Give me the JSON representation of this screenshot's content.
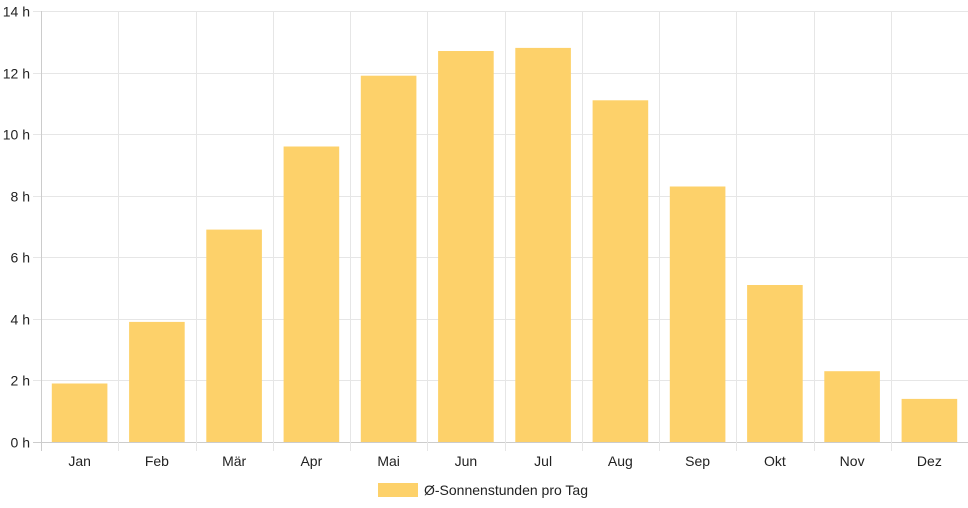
{
  "chart_data": {
    "type": "bar",
    "categories": [
      "Jan",
      "Feb",
      "Mär",
      "Apr",
      "Mai",
      "Jun",
      "Jul",
      "Aug",
      "Sep",
      "Okt",
      "Nov",
      "Dez"
    ],
    "series": [
      {
        "name": "Ø-Sonnenstunden pro Tag",
        "values": [
          1.9,
          3.9,
          6.9,
          9.6,
          11.9,
          12.7,
          12.8,
          11.1,
          8.3,
          5.1,
          2.3,
          1.4
        ],
        "color": "#fdd16a"
      }
    ],
    "ylim": [
      0,
      14
    ],
    "yticks": [
      0,
      2,
      4,
      6,
      8,
      10,
      12,
      14
    ],
    "y_unit_suffix": " h",
    "grid": true,
    "legend_position": "bottom-center",
    "title": "",
    "xlabel": "",
    "ylabel": ""
  }
}
